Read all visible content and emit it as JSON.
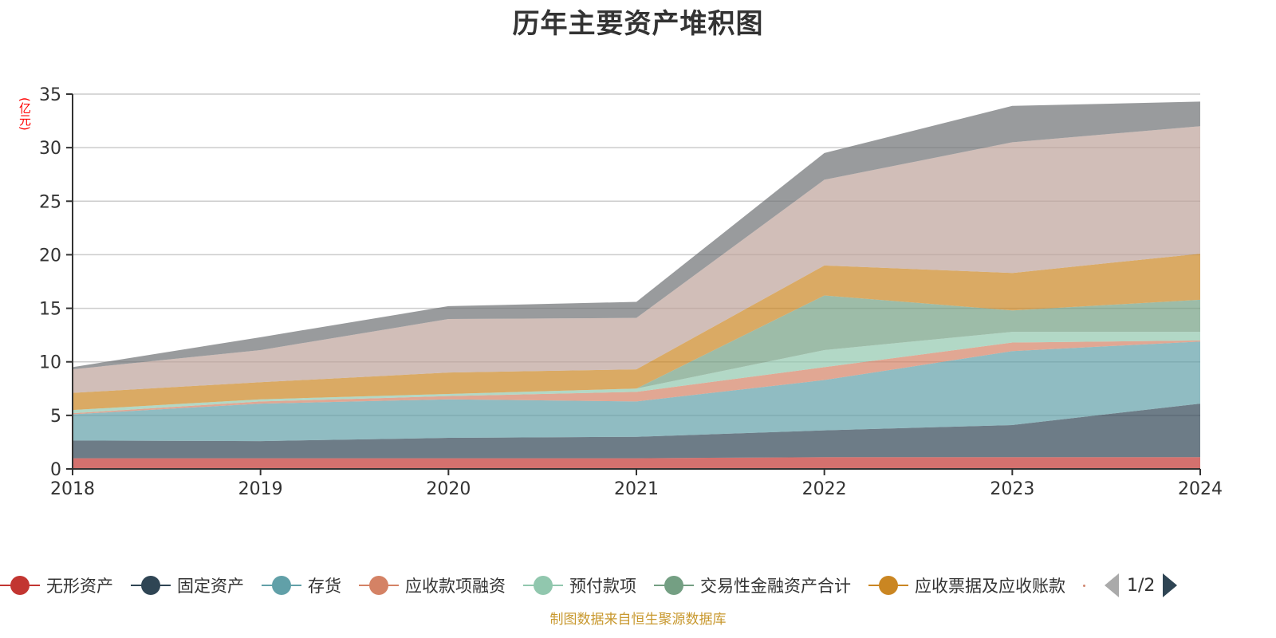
{
  "chart_data": {
    "type": "area",
    "stacked": true,
    "title": "历年主要资产堆积图",
    "xlabel": "",
    "ylabel": "(亿元)",
    "x": [
      "2018",
      "2019",
      "2020",
      "2021",
      "2022",
      "2023",
      "2024"
    ],
    "ylim": [
      0,
      35
    ],
    "yticks": [
      0,
      5,
      10,
      15,
      20,
      25,
      30,
      35
    ],
    "grid": true,
    "legend_position": "bottom",
    "series": [
      {
        "name": "无形资产",
        "color": "#c23531",
        "values": [
          1.0,
          1.0,
          1.0,
          1.0,
          1.1,
          1.1,
          1.1
        ]
      },
      {
        "name": "固定资产",
        "color": "#2f4554",
        "values": [
          1.65,
          1.6,
          1.9,
          2.0,
          2.5,
          3.0,
          5.0
        ]
      },
      {
        "name": "存货",
        "color": "#61a0a8",
        "values": [
          2.45,
          3.5,
          3.6,
          3.3,
          4.7,
          6.9,
          5.8
        ]
      },
      {
        "name": "应收款项融资",
        "color": "#d48265",
        "values": [
          0.1,
          0.2,
          0.3,
          0.9,
          1.2,
          0.8,
          0.1
        ]
      },
      {
        "name": "预付款项",
        "color": "#91c7ae",
        "values": [
          0.3,
          0.2,
          0.2,
          0.3,
          1.6,
          1.0,
          0.8
        ]
      },
      {
        "name": "交易性金融资产合计",
        "color": "#749f83",
        "values": [
          0.0,
          0.0,
          0.0,
          0.0,
          5.1,
          2.0,
          3.0
        ]
      },
      {
        "name": "应收票据及应收账款",
        "color": "#ca8622",
        "values": [
          1.6,
          1.6,
          2.0,
          1.8,
          2.8,
          3.5,
          4.3
        ]
      },
      {
        "name": "",
        "color": "#bda29a",
        "values": [
          2.2,
          3.0,
          5.0,
          4.8,
          8.0,
          12.2,
          11.9
        ]
      },
      {
        "name": "",
        "color": "#6e7074",
        "values": [
          0.2,
          1.2,
          1.2,
          1.5,
          2.5,
          3.4,
          2.3
        ]
      }
    ]
  },
  "legend": {
    "items": [
      {
        "label": "无形资产",
        "color": "#c23531"
      },
      {
        "label": "固定资产",
        "color": "#2f4554"
      },
      {
        "label": "存货",
        "color": "#61a0a8"
      },
      {
        "label": "应收款项融资",
        "color": "#d48265"
      },
      {
        "label": "预付款项",
        "color": "#91c7ae"
      },
      {
        "label": "交易性金融资产合计",
        "color": "#749f83"
      },
      {
        "label": "应收票据及应收账款",
        "color": "#ca8622"
      }
    ],
    "pager_text": "1/2"
  },
  "source_note": "制图数据来自恒生聚源数据库"
}
